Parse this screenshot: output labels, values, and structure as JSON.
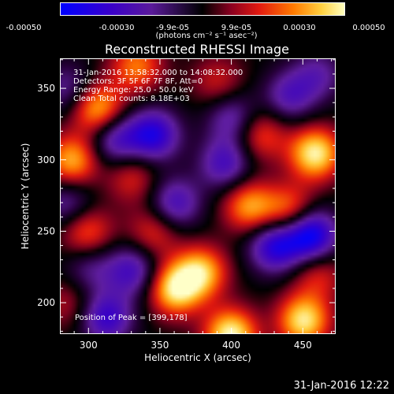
{
  "colorbar": {
    "ticks": [
      "-0.00050",
      "-0.00030",
      "-9.9e-05",
      "9.9e-05",
      "0.00030",
      "0.00050"
    ],
    "unit": "(photons cm⁻² s⁻¹ asec⁻²)",
    "colors": [
      "#0000ff",
      "#5a1a9a",
      "#000000",
      "#e21a10",
      "#ff7a00",
      "#ffffc0"
    ]
  },
  "chart_data": {
    "type": "heatmap",
    "title": "Reconstructed RHESSI Image",
    "xlabel": "Heliocentric X (arcsec)",
    "ylabel": "Heliocentric Y (arcsec)",
    "xlim": [
      280,
      473
    ],
    "ylim": [
      178,
      371
    ],
    "x_ticks": [
      300,
      350,
      400,
      450
    ],
    "y_ticks": [
      200,
      250,
      300,
      350
    ],
    "colorbar_range": [
      -0.0005,
      0.0005
    ],
    "annotations": [
      "31-Jan-2016 13:58:32.000 to 14:08:32.000",
      "Detectors: 3F 5F 6F 7F 8F, Att=0",
      "Energy Range: 25.0 - 50.0 keV",
      "Clean    Total counts: 8.18E+03"
    ],
    "peak_label": "Position of Peak = [399,178]",
    "blobs": [
      {
        "x": 399,
        "y": 178,
        "v": 0.0005
      },
      {
        "x": 450,
        "y": 188,
        "v": 0.00046
      },
      {
        "x": 458,
        "y": 305,
        "v": 0.00048
      },
      {
        "x": 306,
        "y": 336,
        "v": 0.0004
      },
      {
        "x": 333,
        "y": 366,
        "v": 0.0003
      },
      {
        "x": 360,
        "y": 210,
        "v": 0.00045
      },
      {
        "x": 378,
        "y": 222,
        "v": 0.0004
      },
      {
        "x": 288,
        "y": 300,
        "v": 0.00038
      },
      {
        "x": 298,
        "y": 250,
        "v": 0.00028
      },
      {
        "x": 412,
        "y": 268,
        "v": 0.00035
      },
      {
        "x": 440,
        "y": 265,
        "v": 0.0003
      },
      {
        "x": 420,
        "y": 318,
        "v": 0.00025
      },
      {
        "x": 330,
        "y": 288,
        "v": 0.0002
      },
      {
        "x": 345,
        "y": 250,
        "v": 0.00022
      },
      {
        "x": 460,
        "y": 220,
        "v": 0.0002
      },
      {
        "x": 390,
        "y": 355,
        "v": 0.00018
      },
      {
        "x": 285,
        "y": 200,
        "v": 0.00015
      },
      {
        "x": 318,
        "y": 315,
        "v": -0.0003
      },
      {
        "x": 345,
        "y": 318,
        "v": -0.0004
      },
      {
        "x": 395,
        "y": 298,
        "v": -0.0003
      },
      {
        "x": 430,
        "y": 240,
        "v": -0.0004
      },
      {
        "x": 455,
        "y": 248,
        "v": -0.0005
      },
      {
        "x": 312,
        "y": 190,
        "v": -0.00035
      },
      {
        "x": 330,
        "y": 223,
        "v": -0.0003
      },
      {
        "x": 360,
        "y": 270,
        "v": -0.0003
      },
      {
        "x": 400,
        "y": 330,
        "v": -0.00025
      },
      {
        "x": 440,
        "y": 345,
        "v": -0.00025
      },
      {
        "x": 285,
        "y": 350,
        "v": -0.0002
      },
      {
        "x": 285,
        "y": 270,
        "v": -0.00022
      },
      {
        "x": 460,
        "y": 360,
        "v": -0.0002
      },
      {
        "x": 300,
        "y": 225,
        "v": -0.00018
      }
    ]
  },
  "timestamp": "31-Jan-2016 12:22"
}
